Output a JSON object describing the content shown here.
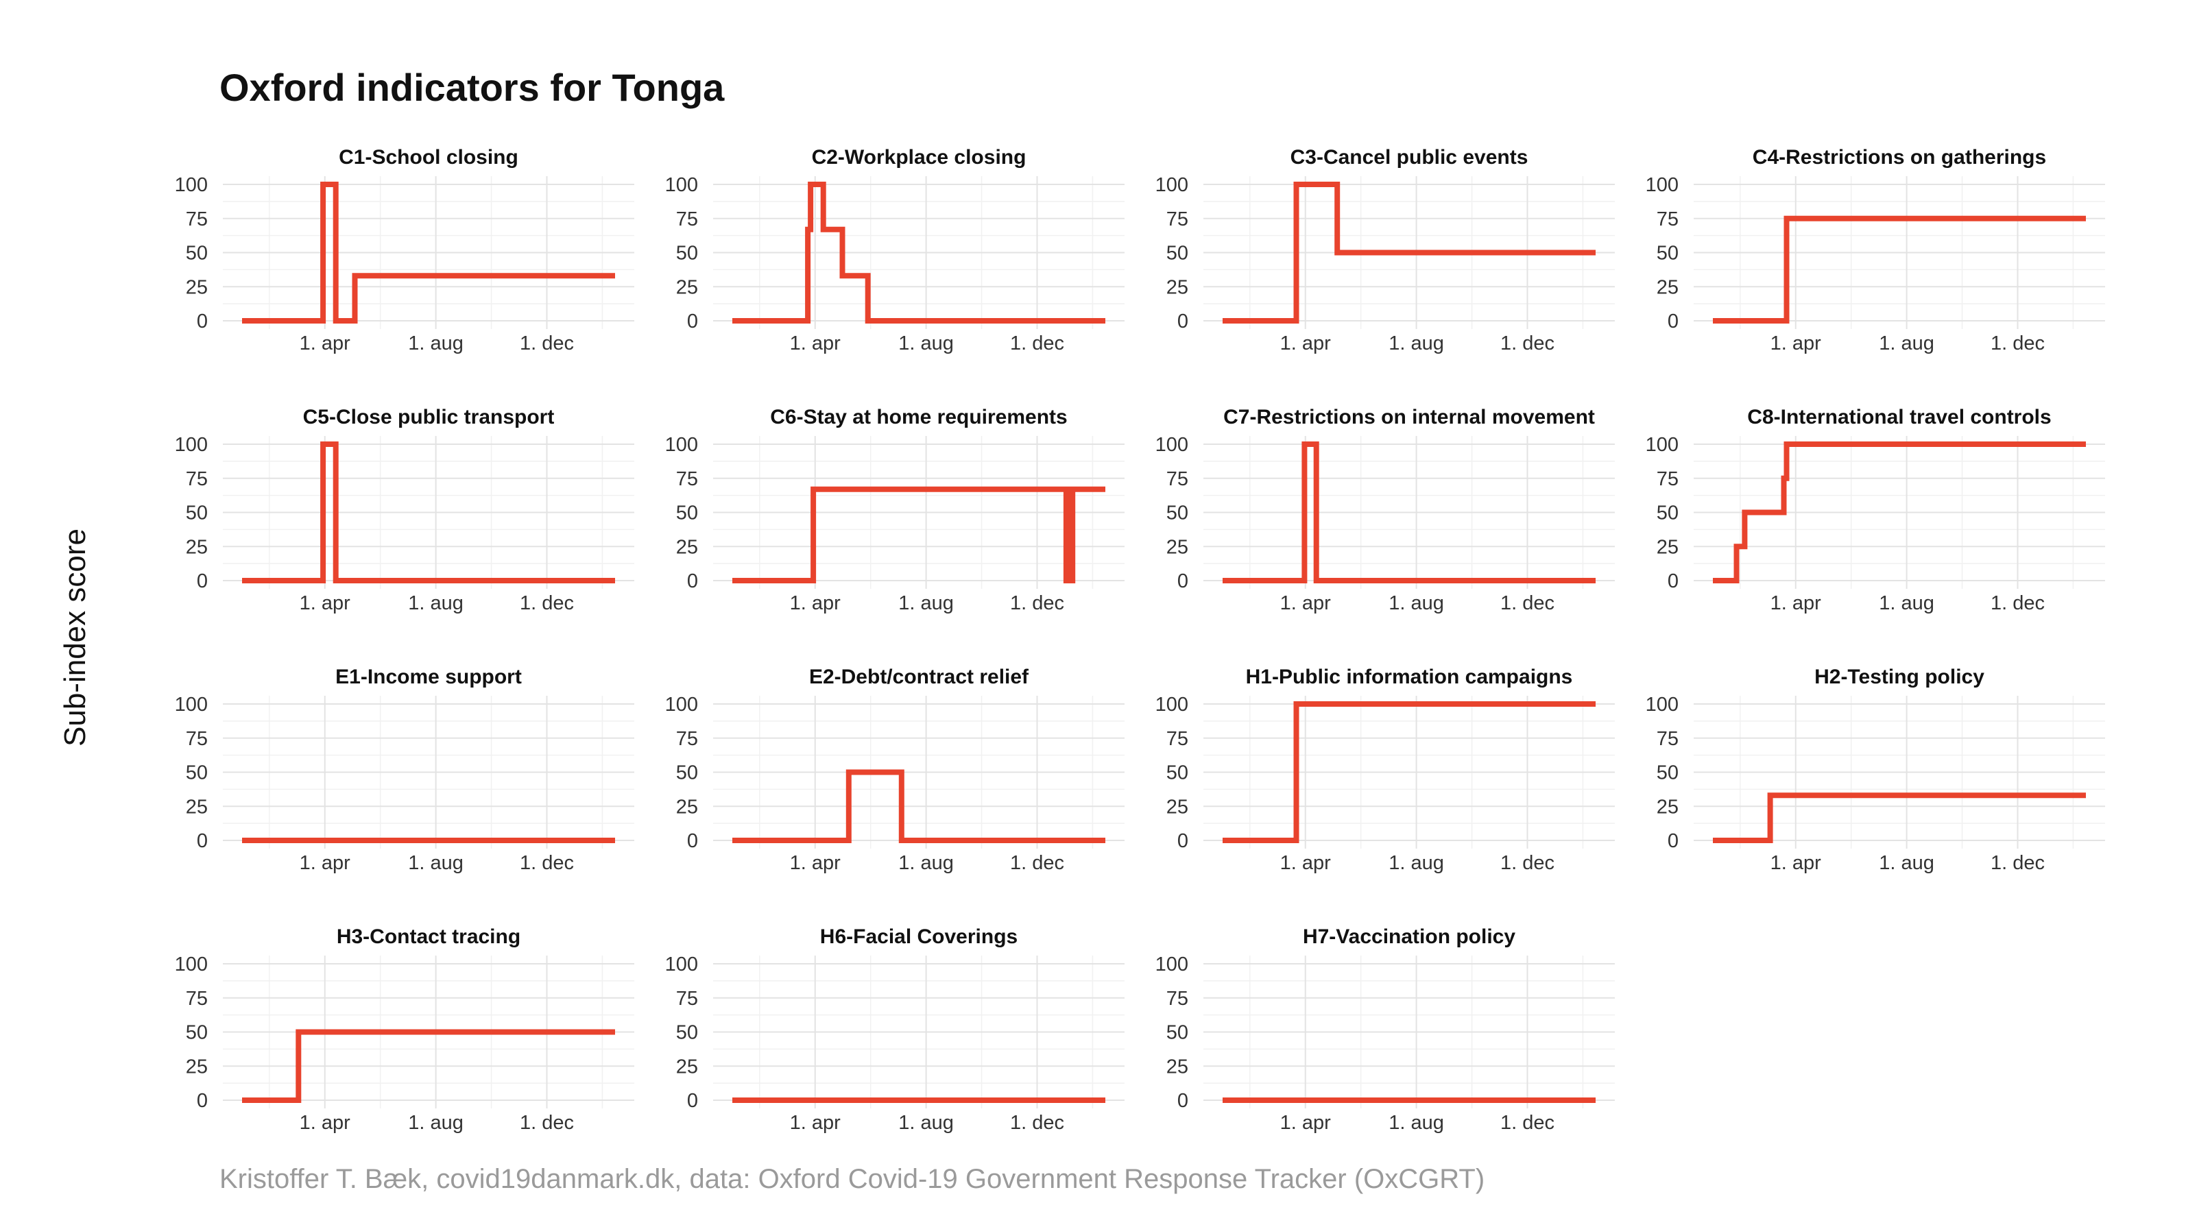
{
  "header": {
    "title": "Oxford indicators for Tonga"
  },
  "axes": {
    "ylabel": "Sub-index score"
  },
  "footer": {
    "caption": "Kristoffer T. Bæk, covid19danmark.dk, data: Oxford Covid-19 Government Response Tracker (OxCGRT)"
  },
  "colors": {
    "line": "#e8432d"
  },
  "chart_data": [
    {
      "type": "line",
      "title": "C1-School closing",
      "xlim": [
        0,
        410
      ],
      "ylim": [
        0,
        100
      ],
      "x_ticks": [
        {
          "label": "1. apr",
          "x": 91
        },
        {
          "label": "1. aug",
          "x": 213
        },
        {
          "label": "1. dec",
          "x": 335
        }
      ],
      "y_ticks": [
        0,
        25,
        50,
        75,
        100
      ],
      "x": [
        0,
        89,
        89,
        103,
        103,
        124,
        124,
        410
      ],
      "y": [
        0,
        0,
        100,
        100,
        0,
        0,
        33,
        33
      ]
    },
    {
      "type": "line",
      "title": "C2-Workplace closing",
      "xlim": [
        0,
        410
      ],
      "ylim": [
        0,
        100
      ],
      "x_ticks": [
        {
          "label": "1. apr",
          "x": 91
        },
        {
          "label": "1. aug",
          "x": 213
        },
        {
          "label": "1. dec",
          "x": 335
        }
      ],
      "y_ticks": [
        0,
        25,
        50,
        75,
        100
      ],
      "x": [
        0,
        83,
        83,
        86,
        86,
        100,
        100,
        121,
        121,
        149,
        149,
        410
      ],
      "y": [
        0,
        0,
        67,
        67,
        100,
        100,
        67,
        67,
        33,
        33,
        0,
        0
      ]
    },
    {
      "type": "line",
      "title": "C3-Cancel public events",
      "xlim": [
        0,
        410
      ],
      "ylim": [
        0,
        100
      ],
      "x_ticks": [
        {
          "label": "1. apr",
          "x": 91
        },
        {
          "label": "1. aug",
          "x": 213
        },
        {
          "label": "1. dec",
          "x": 335
        }
      ],
      "y_ticks": [
        0,
        25,
        50,
        75,
        100
      ],
      "x": [
        0,
        81,
        81,
        126,
        126,
        410
      ],
      "y": [
        0,
        0,
        100,
        100,
        50,
        50
      ]
    },
    {
      "type": "line",
      "title": "C4-Restrictions on gatherings",
      "xlim": [
        0,
        410
      ],
      "ylim": [
        0,
        100
      ],
      "x_ticks": [
        {
          "label": "1. apr",
          "x": 91
        },
        {
          "label": "1. aug",
          "x": 213
        },
        {
          "label": "1. dec",
          "x": 335
        }
      ],
      "y_ticks": [
        0,
        25,
        50,
        75,
        100
      ],
      "x": [
        0,
        81,
        81,
        410
      ],
      "y": [
        0,
        0,
        75,
        75
      ]
    },
    {
      "type": "line",
      "title": "C5-Close public transport",
      "xlim": [
        0,
        410
      ],
      "ylim": [
        0,
        100
      ],
      "x_ticks": [
        {
          "label": "1. apr",
          "x": 91
        },
        {
          "label": "1. aug",
          "x": 213
        },
        {
          "label": "1. dec",
          "x": 335
        }
      ],
      "y_ticks": [
        0,
        25,
        50,
        75,
        100
      ],
      "x": [
        0,
        89,
        89,
        103,
        103,
        410
      ],
      "y": [
        0,
        0,
        100,
        100,
        0,
        0
      ]
    },
    {
      "type": "line",
      "title": "C6-Stay at home requirements",
      "xlim": [
        0,
        410
      ],
      "ylim": [
        0,
        100
      ],
      "x_ticks": [
        {
          "label": "1. apr",
          "x": 91
        },
        {
          "label": "1. aug",
          "x": 213
        },
        {
          "label": "1. dec",
          "x": 335
        }
      ],
      "y_ticks": [
        0,
        25,
        50,
        75,
        100
      ],
      "x": [
        0,
        89,
        89,
        367,
        367,
        369,
        369,
        372,
        372,
        374,
        374,
        410
      ],
      "y": [
        0,
        0,
        67,
        67,
        0,
        0,
        67,
        67,
        0,
        0,
        67,
        67
      ]
    },
    {
      "type": "line",
      "title": "C7-Restrictions on internal movement",
      "xlim": [
        0,
        410
      ],
      "ylim": [
        0,
        100
      ],
      "x_ticks": [
        {
          "label": "1. apr",
          "x": 91
        },
        {
          "label": "1. aug",
          "x": 213
        },
        {
          "label": "1. dec",
          "x": 335
        }
      ],
      "y_ticks": [
        0,
        25,
        50,
        75,
        100
      ],
      "x": [
        0,
        90,
        90,
        103,
        103,
        410
      ],
      "y": [
        0,
        0,
        100,
        100,
        0,
        0
      ]
    },
    {
      "type": "line",
      "title": "C8-International travel controls",
      "xlim": [
        0,
        410
      ],
      "ylim": [
        0,
        100
      ],
      "x_ticks": [
        {
          "label": "1. apr",
          "x": 91
        },
        {
          "label": "1. aug",
          "x": 213
        },
        {
          "label": "1. dec",
          "x": 335
        }
      ],
      "y_ticks": [
        0,
        25,
        50,
        75,
        100
      ],
      "x": [
        0,
        26,
        26,
        35,
        35,
        78,
        78,
        81,
        81,
        410
      ],
      "y": [
        0,
        0,
        25,
        25,
        50,
        50,
        75,
        75,
        100,
        100
      ]
    },
    {
      "type": "line",
      "title": "E1-Income support",
      "xlim": [
        0,
        410
      ],
      "ylim": [
        0,
        100
      ],
      "x_ticks": [
        {
          "label": "1. apr",
          "x": 91
        },
        {
          "label": "1. aug",
          "x": 213
        },
        {
          "label": "1. dec",
          "x": 335
        }
      ],
      "y_ticks": [
        0,
        25,
        50,
        75,
        100
      ],
      "x": [
        0,
        410
      ],
      "y": [
        0,
        0
      ]
    },
    {
      "type": "line",
      "title": "E2-Debt/contract relief",
      "xlim": [
        0,
        410
      ],
      "ylim": [
        0,
        100
      ],
      "x_ticks": [
        {
          "label": "1. apr",
          "x": 91
        },
        {
          "label": "1. aug",
          "x": 213
        },
        {
          "label": "1. dec",
          "x": 335
        }
      ],
      "y_ticks": [
        0,
        25,
        50,
        75,
        100
      ],
      "x": [
        0,
        128,
        128,
        186,
        186,
        410
      ],
      "y": [
        0,
        0,
        50,
        50,
        0,
        0
      ]
    },
    {
      "type": "line",
      "title": "H1-Public information campaigns",
      "xlim": [
        0,
        410
      ],
      "ylim": [
        0,
        100
      ],
      "x_ticks": [
        {
          "label": "1. apr",
          "x": 91
        },
        {
          "label": "1. aug",
          "x": 213
        },
        {
          "label": "1. dec",
          "x": 335
        }
      ],
      "y_ticks": [
        0,
        25,
        50,
        75,
        100
      ],
      "x": [
        0,
        81,
        81,
        410
      ],
      "y": [
        0,
        0,
        100,
        100
      ]
    },
    {
      "type": "line",
      "title": "H2-Testing policy",
      "xlim": [
        0,
        410
      ],
      "ylim": [
        0,
        100
      ],
      "x_ticks": [
        {
          "label": "1. apr",
          "x": 91
        },
        {
          "label": "1. aug",
          "x": 213
        },
        {
          "label": "1. dec",
          "x": 335
        }
      ],
      "y_ticks": [
        0,
        25,
        50,
        75,
        100
      ],
      "x": [
        0,
        63,
        63,
        410
      ],
      "y": [
        0,
        0,
        33,
        33
      ]
    },
    {
      "type": "line",
      "title": "H3-Contact tracing",
      "xlim": [
        0,
        410
      ],
      "ylim": [
        0,
        100
      ],
      "x_ticks": [
        {
          "label": "1. apr",
          "x": 91
        },
        {
          "label": "1. aug",
          "x": 213
        },
        {
          "label": "1. dec",
          "x": 335
        }
      ],
      "y_ticks": [
        0,
        25,
        50,
        75,
        100
      ],
      "x": [
        0,
        62,
        62,
        410
      ],
      "y": [
        0,
        0,
        50,
        50
      ]
    },
    {
      "type": "line",
      "title": "H6-Facial Coverings",
      "xlim": [
        0,
        410
      ],
      "ylim": [
        0,
        100
      ],
      "x_ticks": [
        {
          "label": "1. apr",
          "x": 91
        },
        {
          "label": "1. aug",
          "x": 213
        },
        {
          "label": "1. dec",
          "x": 335
        }
      ],
      "y_ticks": [
        0,
        25,
        50,
        75,
        100
      ],
      "x": [
        0,
        410
      ],
      "y": [
        0,
        0
      ]
    },
    {
      "type": "line",
      "title": "H7-Vaccination policy",
      "xlim": [
        0,
        410
      ],
      "ylim": [
        0,
        100
      ],
      "x_ticks": [
        {
          "label": "1. apr",
          "x": 91
        },
        {
          "label": "1. aug",
          "x": 213
        },
        {
          "label": "1. dec",
          "x": 335
        }
      ],
      "y_ticks": [
        0,
        25,
        50,
        75,
        100
      ],
      "x": [
        0,
        410
      ],
      "y": [
        0,
        0
      ]
    }
  ]
}
